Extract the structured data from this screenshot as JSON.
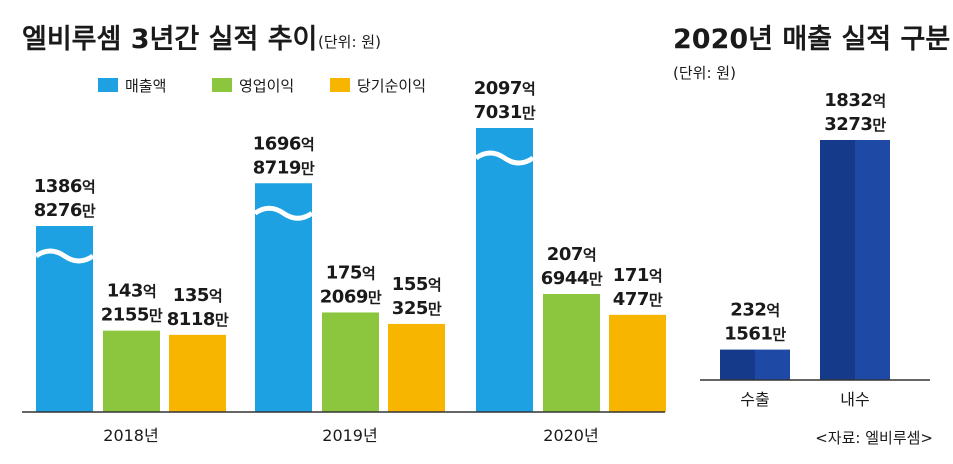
{
  "chart_data": [
    {
      "type": "bar",
      "title": "엘비루셈 3년간 실적 추이",
      "unit": "(단위: 원)",
      "categories": [
        "2018년",
        "2019년",
        "2020년"
      ],
      "series": [
        {
          "name": "매출액",
          "color": "#1da1e2",
          "values": [
            138682760000,
            169687190000,
            209770310000
          ],
          "labels": [
            [
              "1386억",
              "8276만"
            ],
            [
              "1696억",
              "8719만"
            ],
            [
              "2097억",
              "7031만"
            ]
          ]
        },
        {
          "name": "영업이익",
          "color": "#8cc63f",
          "values": [
            14321550000,
            17520690000,
            20769440000
          ],
          "labels": [
            [
              "143억",
              "2155만"
            ],
            [
              "175억",
              "2069만"
            ],
            [
              "207억",
              "6944만"
            ]
          ]
        },
        {
          "name": "당기순이익",
          "color": "#f7b500",
          "values": [
            13581180000,
            15503250000,
            17104770000
          ],
          "labels": [
            [
              "135억",
              "8118만"
            ],
            [
              "155억",
              "325만"
            ],
            [
              "171억",
              "477만"
            ]
          ]
        }
      ],
      "axis_break": true
    },
    {
      "type": "bar",
      "title": "2020년 매출 실적 구분",
      "unit": "(단위: 원)",
      "categories": [
        "수출",
        "내수"
      ],
      "values": [
        23215610000,
        183232730000
      ],
      "labels": [
        [
          "232억",
          "1561만"
        ],
        [
          "1832억",
          "3273만"
        ]
      ],
      "color": "#163a8a",
      "color_light": "#1e4aa6"
    }
  ],
  "source": "<자료: 엘비루셈>"
}
